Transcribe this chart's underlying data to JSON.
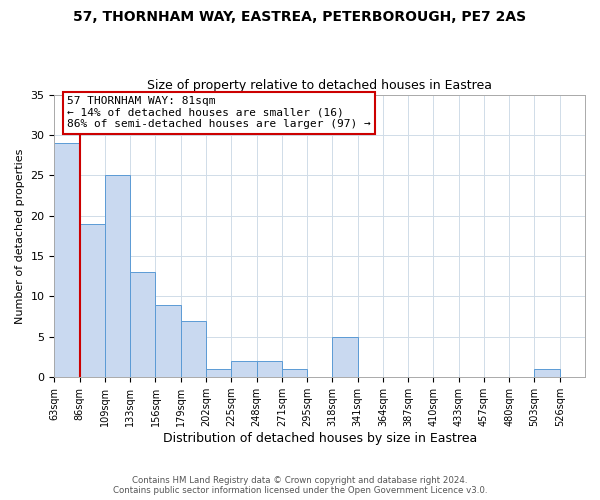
{
  "title": "57, THORNHAM WAY, EASTREA, PETERBOROUGH, PE7 2AS",
  "subtitle": "Size of property relative to detached houses in Eastrea",
  "xlabel": "Distribution of detached houses by size in Eastrea",
  "ylabel": "Number of detached properties",
  "bin_labels": [
    "63sqm",
    "86sqm",
    "109sqm",
    "133sqm",
    "156sqm",
    "179sqm",
    "202sqm",
    "225sqm",
    "248sqm",
    "271sqm",
    "295sqm",
    "318sqm",
    "341sqm",
    "364sqm",
    "387sqm",
    "410sqm",
    "433sqm",
    "457sqm",
    "480sqm",
    "503sqm",
    "526sqm"
  ],
  "bar_heights": [
    29,
    19,
    25,
    13,
    9,
    7,
    1,
    2,
    2,
    1,
    0,
    5,
    0,
    0,
    0,
    0,
    0,
    0,
    0,
    1,
    0
  ],
  "bar_color": "#c9d9f0",
  "bar_edge_color": "#5b9bd5",
  "highlight_color": "#cc0000",
  "ylim": [
    0,
    35
  ],
  "annotation_text": "57 THORNHAM WAY: 81sqm\n← 14% of detached houses are smaller (16)\n86% of semi-detached houses are larger (97) →",
  "footer_line1": "Contains HM Land Registry data © Crown copyright and database right 2024.",
  "footer_line2": "Contains public sector information licensed under the Open Government Licence v3.0.",
  "title_fontsize": 10,
  "subtitle_fontsize": 9,
  "annotation_box_edge_color": "#cc0000",
  "background_color": "#ffffff",
  "grid_color": "#d0dce8"
}
